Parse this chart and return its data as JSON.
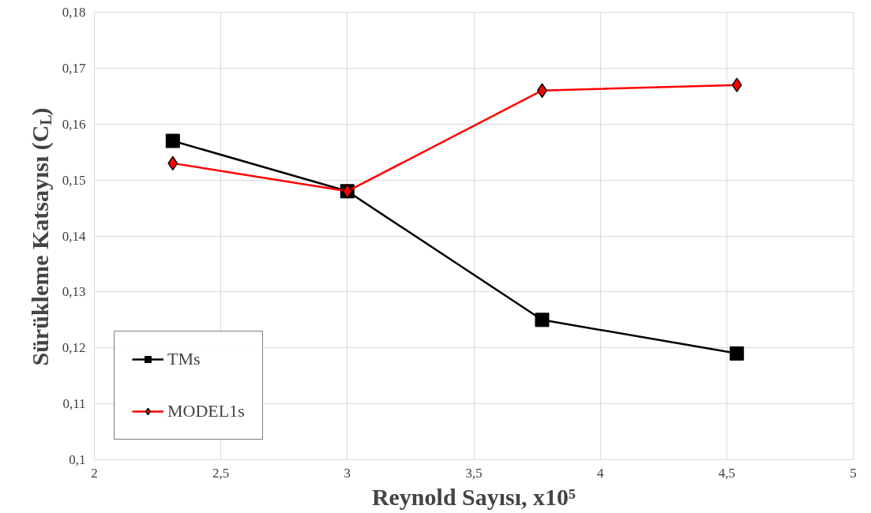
{
  "chart_data": {
    "type": "line",
    "xlabel": "Reynold Sayısı, x10⁵",
    "ylabel": "Sürükleme Katsayısı (C$_{L}$)",
    "x": [
      2.31,
      3.0,
      3.77,
      4.54
    ],
    "series": [
      {
        "name": "TMs",
        "color": "#000000",
        "values": [
          0.157,
          0.148,
          0.125,
          0.119
        ],
        "marker": "square"
      },
      {
        "name": "MODEL1s",
        "color": "#ff0000",
        "values": [
          0.153,
          0.148,
          0.166,
          0.167
        ],
        "marker": "diamond"
      }
    ],
    "xlim": [
      2,
      5
    ],
    "xticks": [
      2,
      {
        "value": 2.5,
        "label": "2,5"
      },
      3,
      {
        "value": 3.5,
        "label": "3,5"
      },
      4,
      {
        "value": 4.5,
        "label": "4,5"
      },
      5
    ],
    "ylim": [
      0.1,
      0.18
    ],
    "yticks": [
      {
        "value": 0.1,
        "label": "0,1"
      },
      {
        "value": 0.11,
        "label": "0,11"
      },
      {
        "value": 0.12,
        "label": "0,12"
      },
      {
        "value": 0.13,
        "label": "0,13"
      },
      {
        "value": 0.14,
        "label": "0,14"
      },
      {
        "value": 0.15,
        "label": "0,15"
      },
      {
        "value": 0.16,
        "label": "0,16"
      },
      {
        "value": 0.17,
        "label": "0,17"
      },
      {
        "value": 0.18,
        "label": "0,18"
      }
    ],
    "grid": true,
    "legend": "bottom left",
    "line_style": "solid"
  }
}
